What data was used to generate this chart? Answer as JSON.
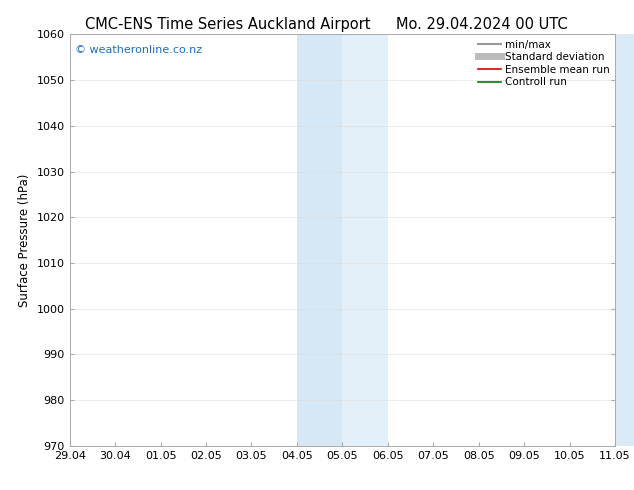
{
  "title_left": "CMC-ENS Time Series Auckland Airport",
  "title_right": "Mo. 29.04.2024 00 UTC",
  "ylabel": "Surface Pressure (hPa)",
  "ylim": [
    970,
    1060
  ],
  "yticks": [
    970,
    980,
    990,
    1000,
    1010,
    1020,
    1030,
    1040,
    1050,
    1060
  ],
  "xtick_labels": [
    "29.04",
    "30.04",
    "01.05",
    "02.05",
    "03.05",
    "04.05",
    "05.05",
    "06.05",
    "07.05",
    "08.05",
    "09.05",
    "10.05",
    "11.05"
  ],
  "background_color": "#ffffff",
  "plot_bg_color": "#ffffff",
  "highlight_band1_color": "#d6e8f5",
  "highlight_band2_color": "#e4f0f9",
  "right_edge_color": "#daeaf7",
  "watermark_text": "© weatheronline.co.nz",
  "watermark_color": "#1a6ebf",
  "legend_items": [
    {
      "label": "min/max",
      "color": "#999999",
      "linestyle": "-",
      "linewidth": 1.5
    },
    {
      "label": "Standard deviation",
      "color": "#bbbbbb",
      "linestyle": "-",
      "linewidth": 5
    },
    {
      "label": "Ensemble mean run",
      "color": "#dd0000",
      "linestyle": "-",
      "linewidth": 1.2
    },
    {
      "label": "Controll run",
      "color": "#007700",
      "linestyle": "-",
      "linewidth": 1.2
    }
  ],
  "title_fontsize": 10.5,
  "ylabel_fontsize": 8.5,
  "tick_fontsize": 8,
  "watermark_fontsize": 8,
  "legend_fontsize": 7.5,
  "grid_color": "#dddddd",
  "grid_alpha": 0.8,
  "grid_linewidth": 0.5
}
